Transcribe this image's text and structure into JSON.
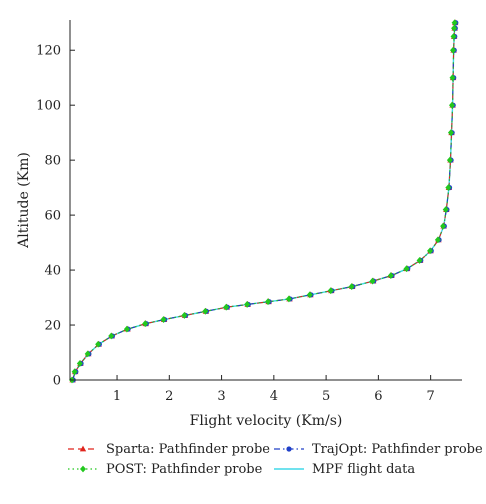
{
  "chart_data": {
    "type": "line",
    "xlabel": "Flight velocity (Km/s)",
    "ylabel": "Altitude (Km)",
    "xlim": [
      0.1,
      7.6
    ],
    "ylim": [
      0,
      131
    ],
    "xticks": [
      1,
      2,
      3,
      4,
      5,
      6,
      7
    ],
    "yticks": [
      0,
      20,
      40,
      60,
      80,
      100,
      120
    ],
    "grid": false,
    "legend_position": "bottom",
    "series": [
      {
        "name": "Sparta: Pathfinder probe",
        "color": "#e0241c",
        "line_style": "dashed",
        "marker": "triangle",
        "x": [
          0.15,
          0.2,
          0.3,
          0.45,
          0.65,
          0.9,
          1.2,
          1.55,
          1.9,
          2.3,
          2.7,
          3.1,
          3.5,
          3.9,
          4.3,
          4.7,
          5.1,
          5.5,
          5.9,
          6.25,
          6.55,
          6.8,
          7.0,
          7.15,
          7.25,
          7.3,
          7.35,
          7.38,
          7.4,
          7.42,
          7.43,
          7.44,
          7.45,
          7.46,
          7.47
        ],
        "y": [
          0,
          3,
          6,
          9.5,
          13,
          16,
          18.5,
          20.5,
          22,
          23.5,
          25,
          26.5,
          27.5,
          28.5,
          29.5,
          31,
          32.5,
          34,
          36,
          38,
          40.5,
          43.5,
          47,
          51,
          56,
          62,
          70,
          80,
          90,
          100,
          110,
          120,
          125,
          128,
          130
        ]
      },
      {
        "name": "TrajOpt: Pathfinder probe",
        "color": "#2040c8",
        "line_style": "dash-dot",
        "marker": "circle",
        "x": [
          0.15,
          0.2,
          0.3,
          0.45,
          0.65,
          0.9,
          1.2,
          1.55,
          1.9,
          2.3,
          2.7,
          3.1,
          3.5,
          3.9,
          4.3,
          4.7,
          5.1,
          5.5,
          5.9,
          6.25,
          6.55,
          6.8,
          7.0,
          7.15,
          7.25,
          7.3,
          7.35,
          7.38,
          7.4,
          7.42,
          7.43,
          7.44,
          7.45,
          7.46,
          7.47
        ],
        "y": [
          0,
          3,
          6,
          9.5,
          13,
          16,
          18.5,
          20.5,
          22,
          23.5,
          25,
          26.5,
          27.5,
          28.5,
          29.5,
          31,
          32.5,
          34,
          36,
          38,
          40.5,
          43.5,
          47,
          51,
          56,
          62,
          70,
          80,
          90,
          100,
          110,
          120,
          125,
          128,
          130
        ]
      },
      {
        "name": "POST: Pathfinder probe",
        "color": "#22c81e",
        "line_style": "dotted",
        "marker": "diamond",
        "x": [
          0.15,
          0.2,
          0.3,
          0.45,
          0.65,
          0.9,
          1.2,
          1.55,
          1.9,
          2.3,
          2.7,
          3.1,
          3.5,
          3.9,
          4.3,
          4.7,
          5.1,
          5.5,
          5.9,
          6.25,
          6.55,
          6.8,
          7.0,
          7.15,
          7.25,
          7.3,
          7.35,
          7.38,
          7.4,
          7.42,
          7.43,
          7.44,
          7.45,
          7.46,
          7.47
        ],
        "y": [
          0,
          3,
          6,
          9.5,
          13,
          16,
          18.5,
          20.5,
          22,
          23.5,
          25,
          26.5,
          27.5,
          28.5,
          29.5,
          31,
          32.5,
          34,
          36,
          38,
          40.5,
          43.5,
          47,
          51,
          56,
          62,
          70,
          80,
          90,
          100,
          110,
          120,
          125,
          128,
          130
        ]
      },
      {
        "name": "MPF flight data",
        "color": "#40d8e8",
        "line_style": "solid",
        "marker": "none",
        "x": [
          0.15,
          0.2,
          0.3,
          0.45,
          0.65,
          0.9,
          1.2,
          1.55,
          1.9,
          2.3,
          2.7,
          3.1,
          3.5,
          3.9,
          4.3,
          4.7,
          5.1,
          5.5,
          5.9,
          6.25,
          6.55,
          6.8,
          7.0,
          7.15,
          7.25,
          7.3,
          7.35,
          7.38,
          7.4,
          7.42,
          7.43,
          7.44,
          7.45,
          7.46,
          7.47
        ],
        "y": [
          0,
          3,
          6,
          9.5,
          13,
          16,
          18.5,
          20.5,
          22,
          23.5,
          25,
          26.5,
          27.5,
          28.5,
          29.5,
          31,
          32.5,
          34,
          36,
          38,
          40.5,
          43.5,
          47,
          51,
          56,
          62,
          70,
          80,
          90,
          100,
          110,
          120,
          125,
          128,
          130
        ]
      }
    ]
  }
}
